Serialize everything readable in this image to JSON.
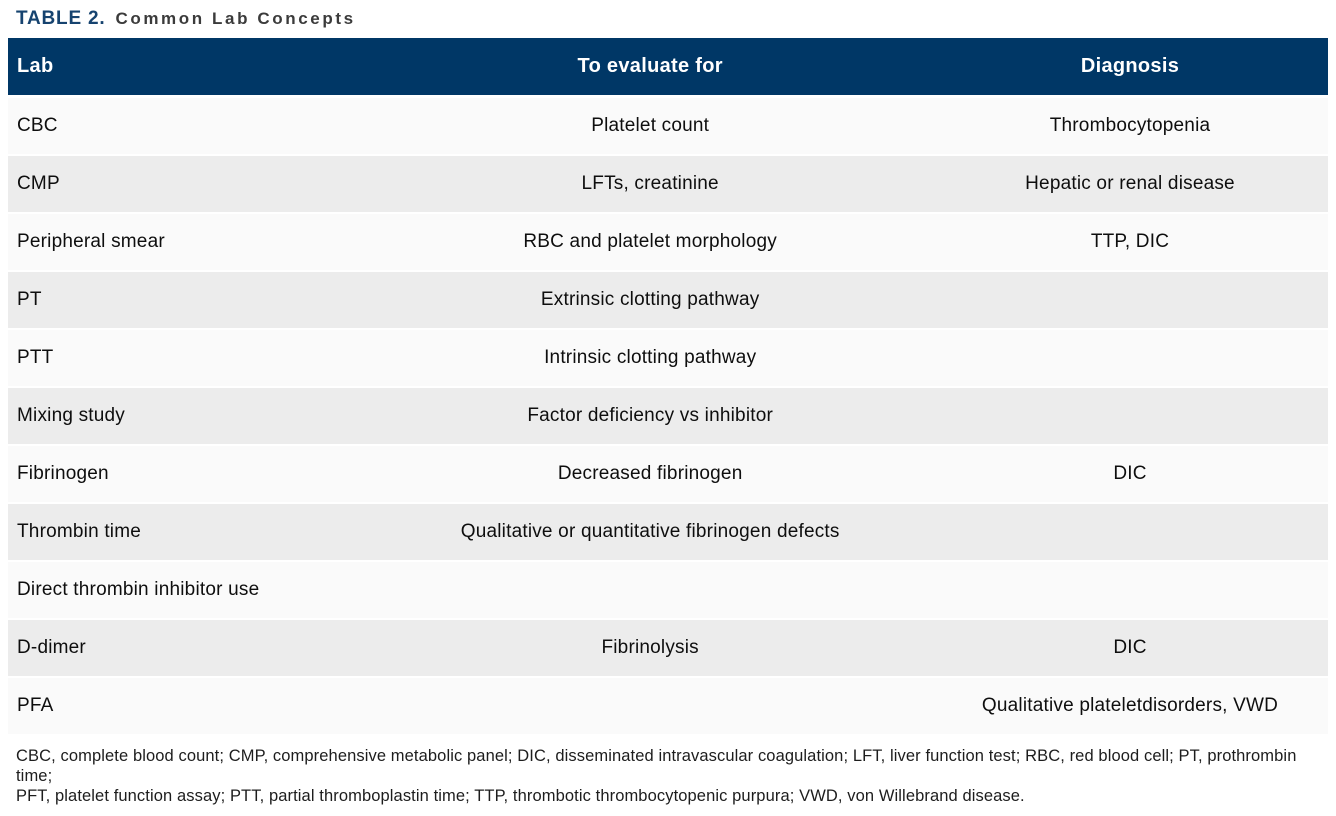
{
  "title": {
    "label": "TABLE 2.",
    "caption": "Common Lab Concepts"
  },
  "colors": {
    "header_bg": "#003766",
    "title_accent": "#16436f",
    "row_light": "#fafafa",
    "row_gray": "#ececec",
    "header_text": "#ffffff",
    "cell_text": "#0e0e0e"
  },
  "table": {
    "headers": [
      "Lab",
      "To evaluate for",
      "Diagnosis"
    ],
    "rows": [
      {
        "lab": "CBC",
        "evaluate": "Platelet count",
        "diagnosis": "Thrombocytopenia"
      },
      {
        "lab": "CMP",
        "evaluate": "LFTs, creatinine",
        "diagnosis": "Hepatic or renal disease"
      },
      {
        "lab": "Peripheral smear",
        "evaluate": "RBC and platelet morphology",
        "diagnosis": "TTP, DIC"
      },
      {
        "lab": "PT",
        "evaluate": "Extrinsic clotting pathway",
        "diagnosis": ""
      },
      {
        "lab": "PTT",
        "evaluate": "Intrinsic clotting pathway",
        "diagnosis": ""
      },
      {
        "lab": "Mixing study",
        "evaluate": "Factor deficiency vs inhibitor",
        "diagnosis": ""
      },
      {
        "lab": "Fibrinogen",
        "evaluate": "Decreased fibrinogen",
        "diagnosis": "DIC"
      },
      {
        "lab": "Thrombin time",
        "evaluate": "Qualitative or quantitative fibrinogen defects",
        "diagnosis": ""
      },
      {
        "lab": "Direct thrombin inhibitor use",
        "evaluate": "",
        "diagnosis": ""
      },
      {
        "lab": "D-dimer",
        "evaluate": "Fibrinolysis",
        "diagnosis": "DIC"
      },
      {
        "lab": "PFA",
        "evaluate": "",
        "diagnosis": "Qualitative plateletdisorders, VWD"
      }
    ]
  },
  "footnote": {
    "line1": "CBC, complete blood count; CMP, comprehensive metabolic panel; DIC, disseminated intravascular coagulation; LFT, liver function test; RBC, red blood cell; PT, prothrombin time;",
    "line2": "PFT, platelet function assay; PTT, partial thromboplastin time; TTP, thrombotic thrombocytopenic purpura; VWD, von Willebrand disease."
  }
}
